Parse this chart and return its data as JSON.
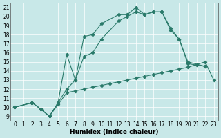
{
  "xlabel": "Humidex (Indice chaleur)",
  "bg_color": "#c8e8e8",
  "line_color": "#2a7a6a",
  "xlim": [
    -0.5,
    23.5
  ],
  "ylim": [
    8.5,
    21.5
  ],
  "xticks": [
    0,
    1,
    2,
    3,
    4,
    5,
    6,
    7,
    8,
    9,
    10,
    11,
    12,
    13,
    14,
    15,
    16,
    17,
    18,
    19,
    20,
    21,
    22,
    23
  ],
  "yticks": [
    9,
    10,
    11,
    12,
    13,
    14,
    15,
    16,
    17,
    18,
    19,
    20,
    21
  ],
  "line1_x": [
    0,
    2,
    3,
    4,
    5,
    6,
    7,
    8,
    9,
    10,
    12,
    13,
    14,
    15,
    16,
    17,
    18,
    19,
    20,
    22
  ],
  "line1_y": [
    10.0,
    10.5,
    9.8,
    9.0,
    10.5,
    15.8,
    13.0,
    17.8,
    18.0,
    19.2,
    20.2,
    20.2,
    21.0,
    20.2,
    20.5,
    20.5,
    18.5,
    17.5,
    15.0,
    14.5
  ],
  "line2_x": [
    0,
    2,
    3,
    4,
    5,
    6,
    7,
    8,
    9,
    10,
    11,
    12,
    13,
    14,
    15,
    16,
    17,
    18,
    19,
    20,
    21,
    22,
    23
  ],
  "line2_y": [
    10.0,
    10.5,
    9.8,
    9.0,
    10.3,
    11.6,
    11.8,
    12.0,
    12.2,
    12.4,
    12.6,
    12.8,
    13.0,
    13.2,
    13.4,
    13.6,
    13.8,
    14.0,
    14.2,
    14.4,
    14.7,
    15.0,
    13.0
  ],
  "line3_x": [
    0,
    2,
    3,
    4,
    5,
    6,
    7,
    8,
    9,
    10,
    12,
    13,
    14,
    15,
    16,
    17,
    18,
    19,
    20,
    22
  ],
  "line3_y": [
    10.0,
    10.5,
    9.8,
    9.0,
    10.5,
    12.0,
    13.0,
    15.6,
    16.0,
    17.5,
    19.5,
    20.0,
    20.5,
    20.2,
    20.5,
    20.5,
    18.7,
    17.5,
    14.8,
    14.5
  ],
  "grid_color": "#ffffff",
  "tick_fontsize": 5.5,
  "label_fontsize": 6.5
}
